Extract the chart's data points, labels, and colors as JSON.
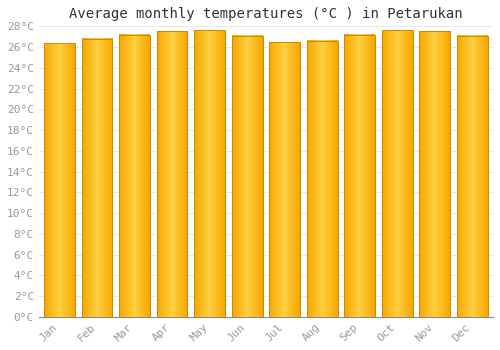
{
  "title": "Average monthly temperatures (°C ) in Petarukan",
  "months": [
    "Jan",
    "Feb",
    "Mar",
    "Apr",
    "May",
    "Jun",
    "Jul",
    "Aug",
    "Sep",
    "Oct",
    "Nov",
    "Dec"
  ],
  "temperatures": [
    26.4,
    26.8,
    27.2,
    27.5,
    27.6,
    27.1,
    26.5,
    26.6,
    27.2,
    27.6,
    27.5,
    27.1
  ],
  "ylim": [
    0,
    28
  ],
  "ytick_step": 2,
  "bar_color_left": "#F5A800",
  "bar_color_center": "#FFD040",
  "bar_color_right": "#F5A800",
  "bar_edge_color": "#CC8800",
  "background_color": "#FFFFFF",
  "grid_color": "#DDDDDD",
  "title_fontsize": 10,
  "tick_fontsize": 8,
  "font_family": "monospace",
  "tick_color": "#999999"
}
